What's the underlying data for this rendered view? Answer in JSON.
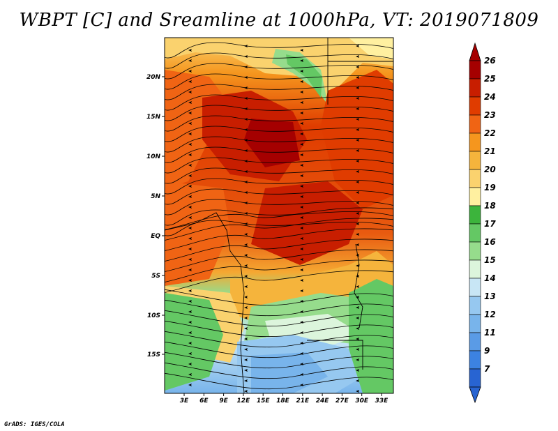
{
  "title": "WBPT [C] and Sreamline at 1000hPa, VT: 2019071809",
  "credit": "GrADS: IGES/COLA",
  "map": {
    "lat_labels": [
      "20N",
      "15N",
      "10N",
      "5N",
      "EQ",
      "5S",
      "10S",
      "15S"
    ],
    "lon_labels": [
      "3E",
      "6E",
      "9E",
      "12E",
      "15E",
      "18E",
      "21E",
      "24E",
      "27E",
      "30E",
      "33E"
    ]
  },
  "colorbar": {
    "labels": [
      "26",
      "25",
      "24",
      "23",
      "22",
      "21",
      "20",
      "19",
      "18",
      "17",
      "16",
      "15",
      "14",
      "13",
      "12",
      "11",
      "9",
      "7"
    ],
    "colors": [
      "#a50000",
      "#c81e00",
      "#e03c00",
      "#f06414",
      "#f5961e",
      "#f5b43c",
      "#fad26e",
      "#fff0a0",
      "#3cb43c",
      "#64c864",
      "#96dc8c",
      "#dcf5dc",
      "#c8e6f5",
      "#96c8f0",
      "#78b4eb",
      "#5a9be6",
      "#3c82e1",
      "#2864d2"
    ]
  }
}
